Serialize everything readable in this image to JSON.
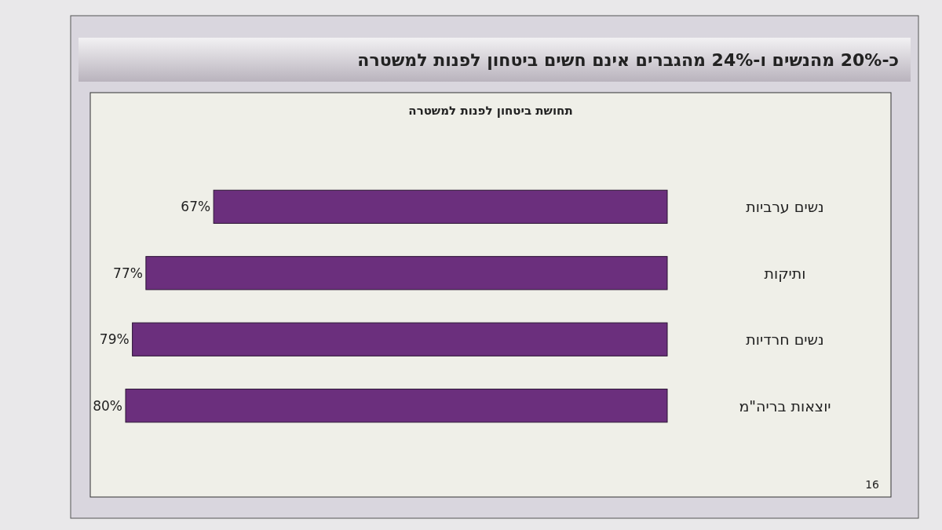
{
  "chart_data": {
    "type": "bar",
    "orientation": "horizontal",
    "title": "כ-20% מהנשים ו-24% מהגברים אינם חשים ביטחון לפנות למשטרה",
    "subtitle": "תחושת ביטחון לפנות למשטרה",
    "categories": [
      "נשים ערביות",
      "ותיקות",
      "נשים חרדיות",
      "יוצאות בריה\"מ"
    ],
    "values": [
      67,
      77,
      79,
      80
    ],
    "value_labels": [
      "67%",
      "77%",
      "79%",
      "80%"
    ],
    "color": "#6b2f7d",
    "annotations": [
      "16"
    ]
  }
}
